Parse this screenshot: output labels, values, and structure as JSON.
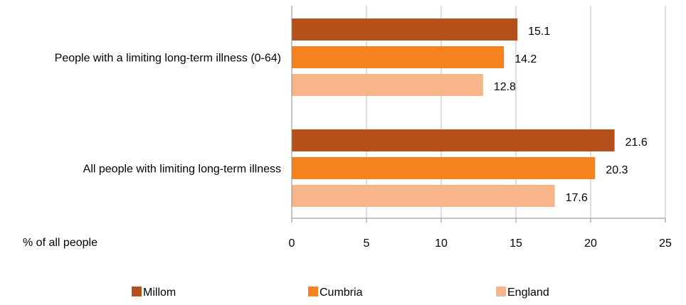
{
  "chart_data": {
    "type": "bar",
    "orientation": "horizontal",
    "categories": [
      "People with a limiting long-term illness (0-64)",
      "All people with limiting long-term illness"
    ],
    "series": [
      {
        "name": "Millom",
        "color": "#B5501A",
        "values": [
          15.1,
          21.6
        ]
      },
      {
        "name": "Cumbria",
        "color": "#F5821F",
        "values": [
          14.2,
          20.3
        ]
      },
      {
        "name": "England",
        "color": "#F7B589",
        "values": [
          12.8,
          17.6
        ]
      }
    ],
    "xlabel": "% of all people",
    "xlim": [
      0,
      25
    ],
    "xticks": [
      0,
      5,
      10,
      15,
      20,
      25
    ],
    "grid": "vertical",
    "legend_position": "bottom",
    "data_labels": true
  }
}
